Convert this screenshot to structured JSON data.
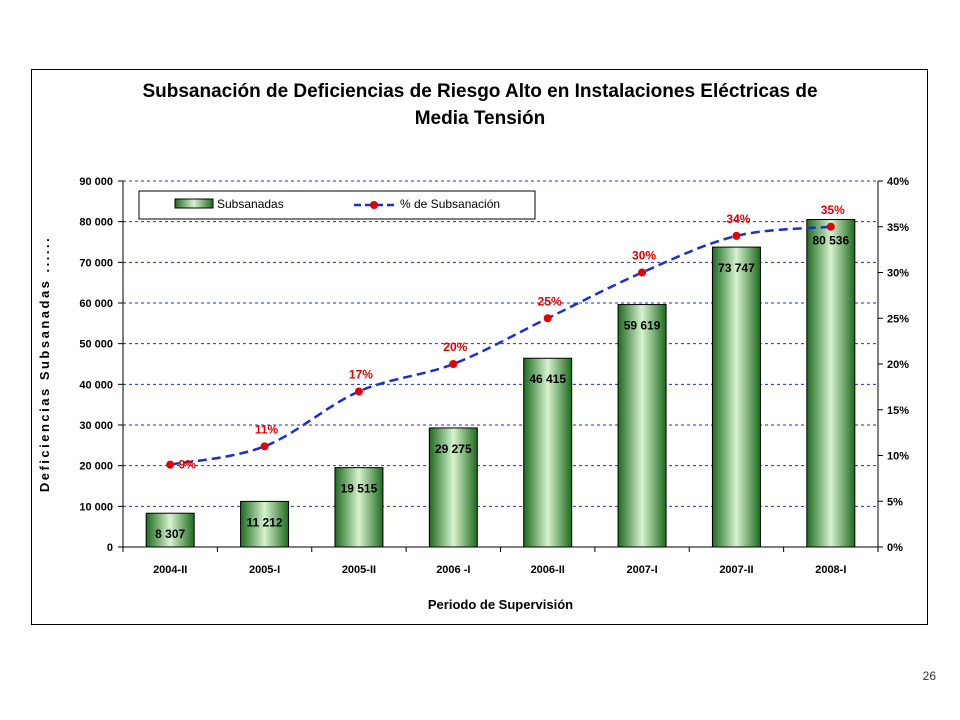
{
  "page_number": "26",
  "colors": {
    "bar_dark": "#1e6a1e",
    "bar_light": "#d6f3cf",
    "line": "#1a2fd0",
    "marker": "#e60000",
    "grid": "#1a2fd0"
  },
  "chart_data": {
    "type": "bar",
    "title_lines": [
      "Subsanación de Deficiencias de Riesgo Alto en Instalaciones Eléctricas de",
      "Media Tensión"
    ],
    "xlabel": "Periodo de Supervisión",
    "ylabel": "Deficiencias Subsanadas ......",
    "categories": [
      "2004-II",
      "2005-I",
      "2005-II",
      "2006 -I",
      "2006-II",
      "2007-I",
      "2007-II",
      "2008-I"
    ],
    "ylim": [
      0,
      90000
    ],
    "y_ticks": [
      "0",
      "10 000",
      "20 000",
      "30 000",
      "40 000",
      "50 000",
      "60 000",
      "70 000",
      "80 000",
      "90 000"
    ],
    "y2lim": [
      0,
      40
    ],
    "y2_ticks": [
      "0%",
      "5%",
      "10%",
      "15%",
      "20%",
      "25%",
      "30%",
      "35%",
      "40%"
    ],
    "gridlines": "horizontal, dashed",
    "legend_position": "top-left",
    "series": [
      {
        "name": "Subsanadas",
        "kind": "bar",
        "values": [
          8307,
          11212,
          19515,
          29275,
          46415,
          59619,
          73747,
          80536
        ],
        "labels": [
          "8 307",
          "11 212",
          "19 515",
          "29 275",
          "46 415",
          "59 619",
          "73 747",
          "80 536"
        ]
      },
      {
        "name": "% de Subsanación",
        "kind": "line",
        "axis": "secondary",
        "values": [
          9,
          11,
          17,
          20,
          25,
          30,
          34,
          35
        ],
        "labels": [
          "9%",
          "11%",
          "17%",
          "20%",
          "25%",
          "30%",
          "34%",
          "35%"
        ]
      }
    ]
  }
}
